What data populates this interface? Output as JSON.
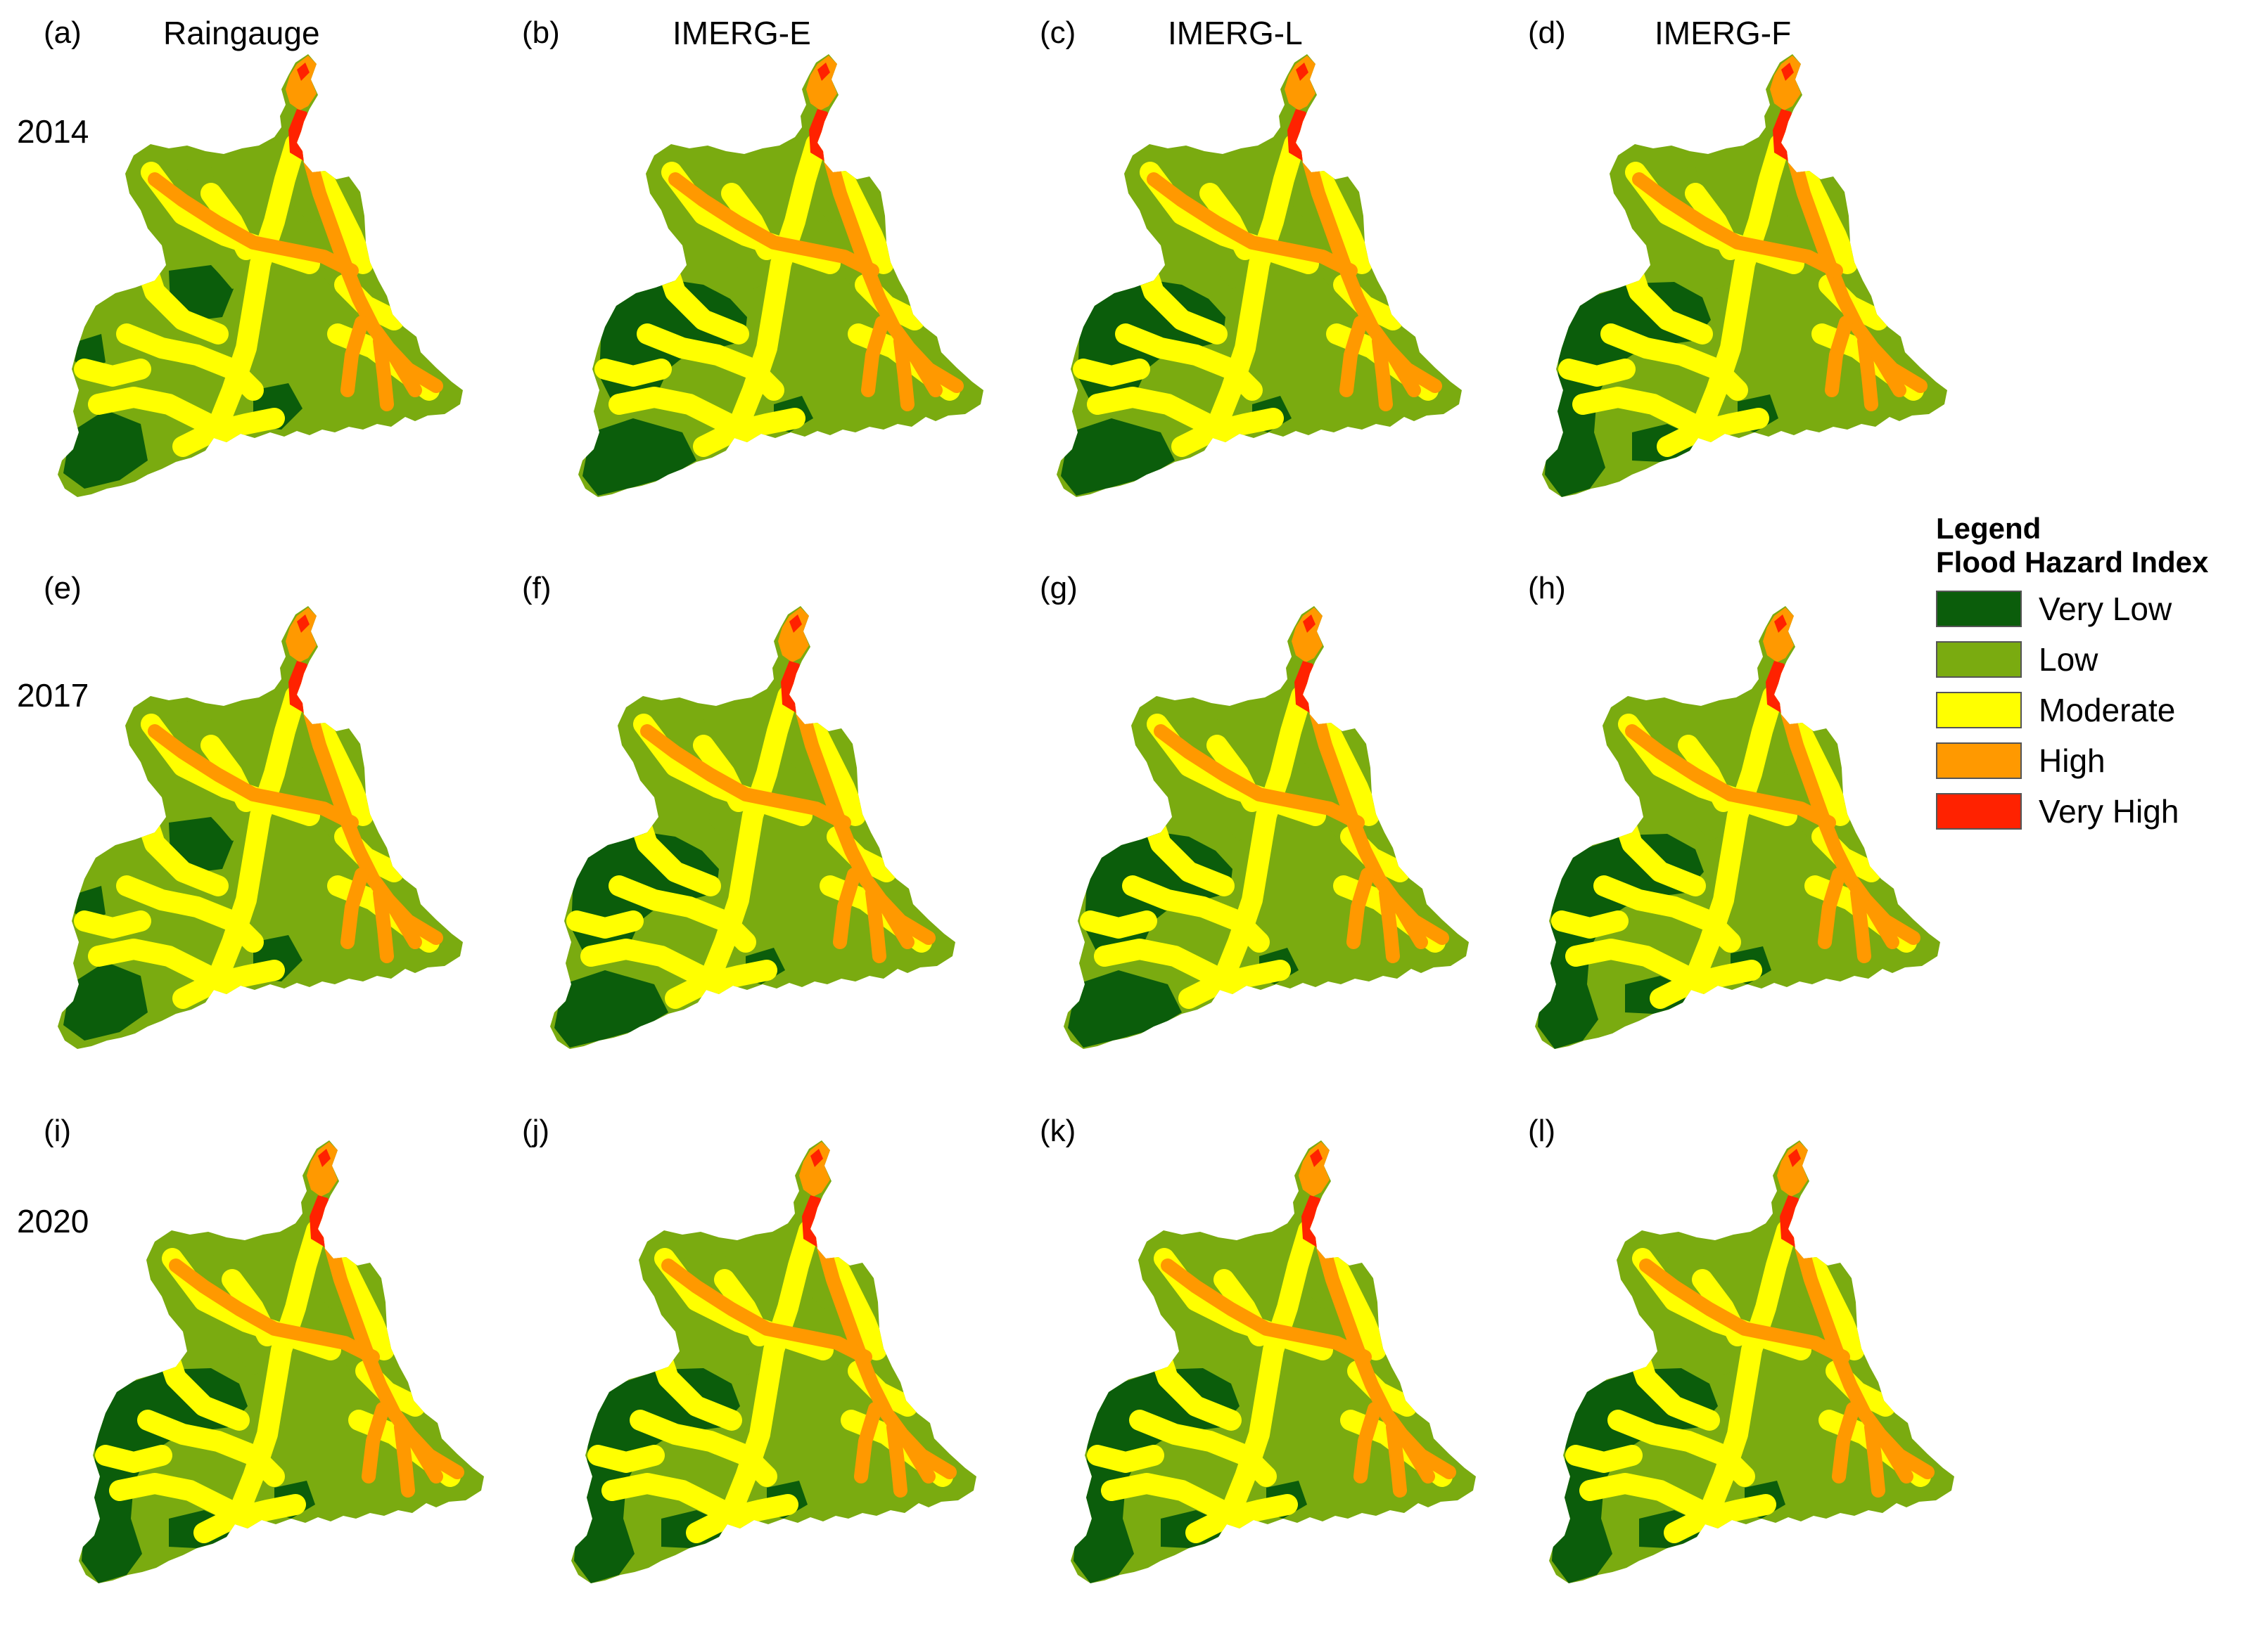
{
  "columns": [
    "Raingauge",
    "IMERG-E",
    "IMERG-L",
    "IMERG-F"
  ],
  "years": [
    "2014",
    "2017",
    "2020"
  ],
  "panels": [
    {
      "label": "(a)",
      "row": 0,
      "col": 0,
      "variant": 0
    },
    {
      "label": "(b)",
      "row": 0,
      "col": 1,
      "variant": 1
    },
    {
      "label": "(c)",
      "row": 0,
      "col": 2,
      "variant": 1
    },
    {
      "label": "(d)",
      "row": 0,
      "col": 3,
      "variant": 2
    },
    {
      "label": "(e)",
      "row": 1,
      "col": 0,
      "variant": 0
    },
    {
      "label": "(f)",
      "row": 1,
      "col": 1,
      "variant": 1
    },
    {
      "label": "(g)",
      "row": 1,
      "col": 2,
      "variant": 1
    },
    {
      "label": "(h)",
      "row": 1,
      "col": 3,
      "variant": 2
    },
    {
      "label": "(i)",
      "row": 2,
      "col": 0,
      "variant": 2
    },
    {
      "label": "(j)",
      "row": 2,
      "col": 1,
      "variant": 2
    },
    {
      "label": "(k)",
      "row": 2,
      "col": 2,
      "variant": 2
    },
    {
      "label": "(l)",
      "row": 2,
      "col": 3,
      "variant": 2
    }
  ],
  "legend": {
    "title": "Legend",
    "subtitle": "Flood Hazard Index",
    "classes": [
      {
        "label": "Very Low",
        "color": "#0b5d0b"
      },
      {
        "label": "Low",
        "color": "#7aab10"
      },
      {
        "label": "Moderate",
        "color": "#ffff00"
      },
      {
        "label": "High",
        "color": "#ff9900"
      },
      {
        "label": "Very High",
        "color": "#ff2200"
      }
    ]
  }
}
